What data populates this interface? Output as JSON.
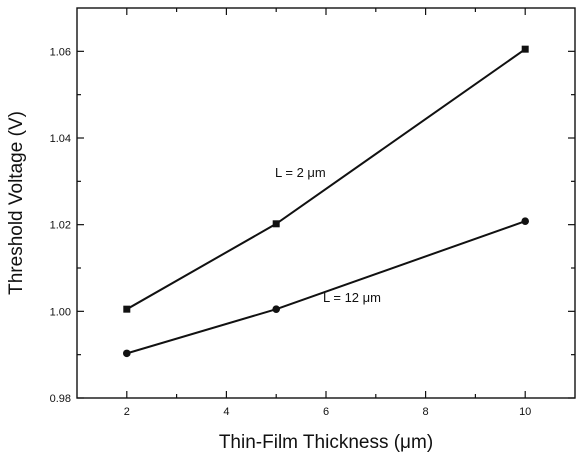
{
  "chart_data": {
    "type": "line",
    "xlabel": "Thin-Film Thickness (μm)",
    "ylabel": "Threshold Voltage (V)",
    "xlim": [
      1,
      11
    ],
    "ylim": [
      0.98,
      1.07
    ],
    "x_ticks": [
      "2",
      "4",
      "6",
      "8",
      "10"
    ],
    "y_ticks": [
      "0.98",
      "1.00",
      "1.02",
      "1.04",
      "1.06"
    ],
    "grid": false,
    "legend": "none",
    "series": [
      {
        "name": "L = 2 μm",
        "marker": "square",
        "x": [
          2,
          5,
          10
        ],
        "values": [
          1.0005,
          1.0202,
          1.0605
        ]
      },
      {
        "name": "L = 12 μm",
        "marker": "circle",
        "x": [
          2,
          5,
          10
        ],
        "values": [
          0.9903,
          1.0005,
          1.0208
        ]
      }
    ]
  }
}
